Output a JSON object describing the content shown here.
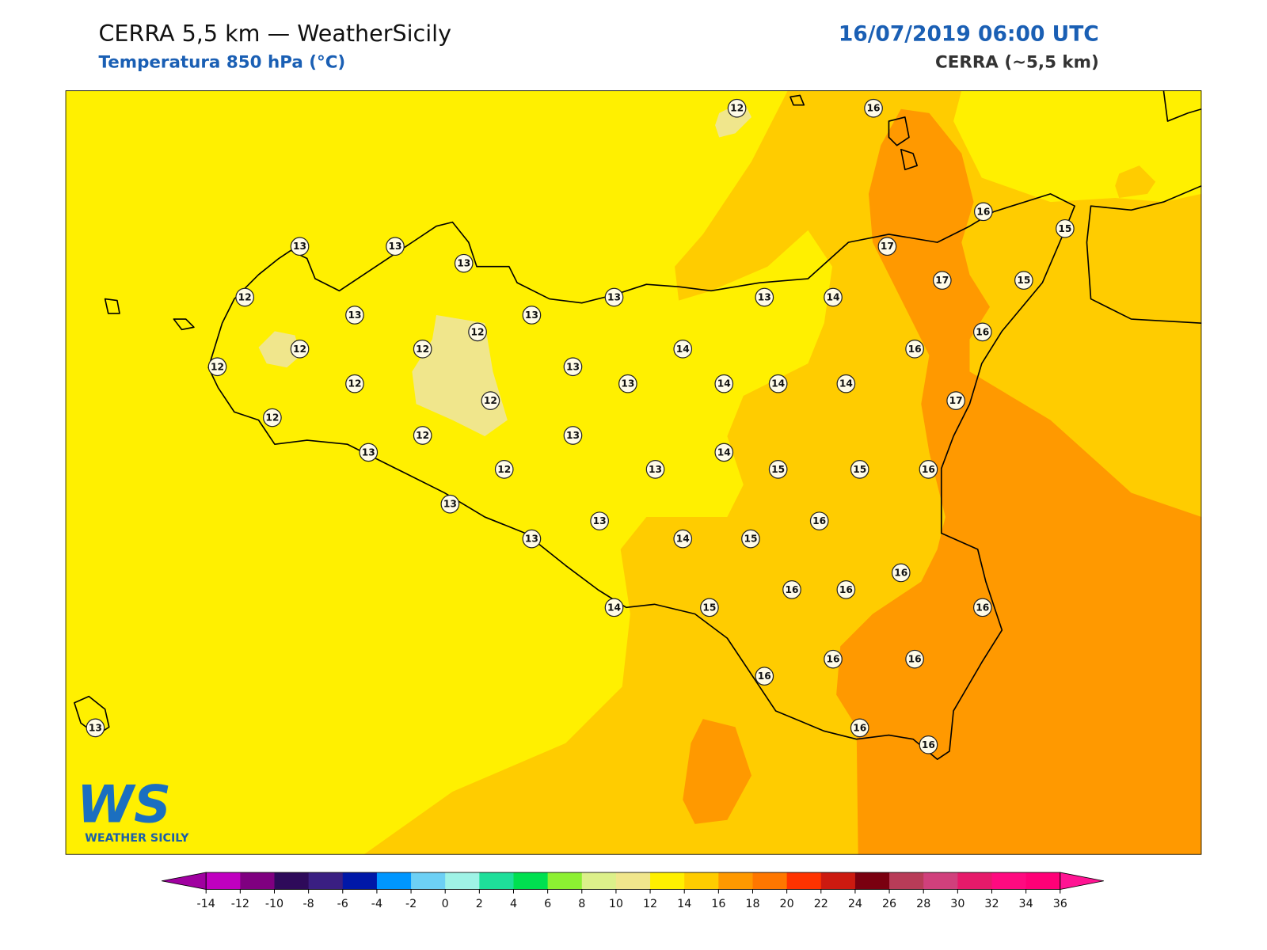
{
  "header": {
    "title": "CERRA 5,5 km — WeatherSicily",
    "subtitle": "Temperatura 850 hPa (°C)",
    "datetime": "16/07/2019 06:00 UTC",
    "model": "CERRA (~5,5 km)"
  },
  "stations": [
    12,
    16,
    16,
    15,
    13,
    13,
    13,
    17,
    12,
    17,
    15,
    13,
    13,
    13,
    13,
    14,
    12,
    16,
    12,
    12,
    14,
    16,
    12,
    13,
    12,
    13,
    14,
    14,
    14,
    17,
    12,
    12,
    12,
    13,
    13,
    14,
    12,
    13,
    15,
    15,
    16,
    13,
    16,
    13,
    13,
    14,
    15,
    16,
    16,
    16,
    14,
    15,
    16,
    16,
    16,
    16,
    16,
    16,
    13
  ],
  "logo": {
    "mark": "WS",
    "text": "WEATHER SICILY"
  },
  "colorbar": {
    "ticks": [
      -14,
      -12,
      -10,
      -8,
      -6,
      -4,
      -2,
      0,
      2,
      4,
      6,
      8,
      10,
      12,
      14,
      16,
      18,
      20,
      22,
      24,
      26,
      28,
      30,
      32,
      34,
      36
    ],
    "colors": [
      "#c000c0",
      "#7f0080",
      "#2e0a5a",
      "#3a1f82",
      "#0018a8",
      "#0096ff",
      "#6dd0f5",
      "#9ff3e6",
      "#1edf9a",
      "#00e050",
      "#8cf032",
      "#dcf08a",
      "#f0e68c",
      "#fff000",
      "#ffcc00",
      "#ff9900",
      "#ff7700",
      "#ff3300",
      "#cc1a10",
      "#7a0010",
      "#b83c58",
      "#d0407c",
      "#e61a6a",
      "#ff0a80",
      "#ff0077"
    ],
    "under": "#a000a0",
    "over": "#ff1493"
  }
}
